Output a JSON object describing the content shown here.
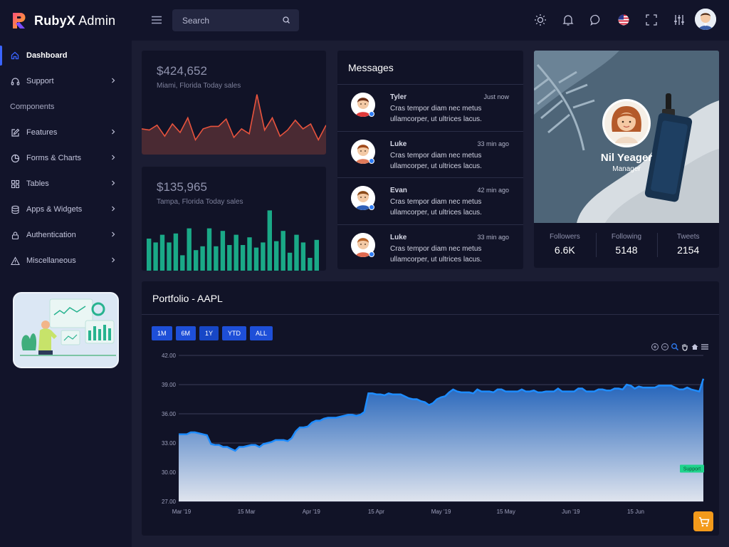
{
  "brand": {
    "name_bold": "RubyX",
    "name_rest": " Admin",
    "logo_icon": "r-logo-icon"
  },
  "header": {
    "search_placeholder": "Search",
    "icons": [
      "menu-icon",
      "search-icon",
      "sun-icon",
      "bell-icon",
      "chat-icon",
      "us-flag-icon",
      "fullscreen-icon",
      "sliders-icon",
      "avatar"
    ]
  },
  "sidebar": {
    "items": [
      {
        "label": "Dashboard",
        "icon": "home-icon"
      },
      {
        "label": "Support",
        "icon": "headphones-icon"
      },
      {
        "section": "Components"
      },
      {
        "label": "Features",
        "icon": "edit-icon"
      },
      {
        "label": "Forms & Charts",
        "icon": "pie-chart-icon"
      },
      {
        "label": "Tables",
        "icon": "grid-icon"
      },
      {
        "label": "Apps & Widgets",
        "icon": "database-icon"
      },
      {
        "label": "Authentication",
        "icon": "lock-icon"
      },
      {
        "label": "Miscellaneous",
        "icon": "warning-icon"
      }
    ]
  },
  "sales": [
    {
      "value": "$424,652",
      "subtitle": "Miami, Florida Today sales",
      "color": "#e8533d",
      "series": [
        21,
        20,
        24,
        15,
        25,
        18,
        30,
        12,
        21,
        23,
        23,
        29,
        14,
        21,
        17,
        49,
        20,
        30,
        15,
        20,
        28,
        21,
        25,
        12,
        24
      ]
    },
    {
      "value": "$135,965",
      "subtitle": "Tampa, Florida Today sales",
      "color": "#1aa987",
      "series": [
        25,
        22,
        28,
        22,
        29,
        12,
        33,
        16,
        19,
        33,
        19,
        31,
        20,
        28,
        20,
        26,
        18,
        22,
        47,
        23,
        31,
        14,
        28,
        22,
        10,
        24
      ]
    }
  ],
  "messages": {
    "title": "Messages",
    "items": [
      {
        "name": "Tyler",
        "time": "Just now",
        "text": "Cras tempor diam nec metus ullamcorper, ut ultrices lacus.",
        "hair": "#6b2e16",
        "shirt": "#e03a3a"
      },
      {
        "name": "Luke",
        "time": "33 min ago",
        "text": "Cras tempor diam nec metus ullamcorper, ut ultrices lacus.",
        "hair": "#a04a1c",
        "shirt": "#e07a5a"
      },
      {
        "name": "Evan",
        "time": "42 min ago",
        "text": "Cras tempor diam nec metus ullamcorper, ut ultrices lacus.",
        "hair": "#8a4a1a",
        "shirt": "#2f5fb7"
      },
      {
        "name": "Luke",
        "time": "33 min ago",
        "text": "Cras tempor diam nec metus ullamcorper, ut ultrices lacus.",
        "hair": "#b8652a",
        "shirt": "#e06a50"
      }
    ]
  },
  "profile": {
    "name": "Nil Yeager",
    "role": "Manager",
    "stats": [
      {
        "label": "Followers",
        "value": "6.6K"
      },
      {
        "label": "Following",
        "value": "5148"
      },
      {
        "label": "Tweets",
        "value": "2154"
      }
    ]
  },
  "portfolio": {
    "title": "Portfolio - AAPL",
    "ranges": [
      "1M",
      "6M",
      "1Y",
      "YTD",
      "ALL"
    ],
    "toolbar_icons": [
      "zoom-in-icon",
      "zoom-out-icon",
      "magnifier-icon",
      "pan-hand-icon",
      "home-icon",
      "menu-icon"
    ],
    "annotation": "Support",
    "fab_icon": "cart-icon"
  },
  "chart_data": {
    "type": "area",
    "title": "Portfolio - AAPL",
    "x_tick_labels": [
      "Mar '19",
      "15 Mar",
      "Apr '19",
      "15 Apr",
      "May '19",
      "15 May",
      "Jun '19",
      "15 Jun"
    ],
    "y_tick_labels": [
      "42.00",
      "39.00",
      "36.00",
      "33.00",
      "30.00",
      "27.00"
    ],
    "ylim": [
      27,
      42
    ],
    "grid": true,
    "annotation": {
      "label": "Support",
      "y": 30.4
    },
    "series": [
      {
        "values": [
          33.9,
          33.9,
          33.9,
          34.1,
          34.1,
          34.0,
          33.9,
          33.8,
          32.9,
          32.8,
          32.8,
          32.6,
          32.6,
          32.4,
          32.2,
          32.6,
          32.6,
          32.7,
          32.8,
          32.8,
          32.6,
          32.9,
          33.0,
          33.1,
          33.3,
          33.3,
          33.3,
          33.2,
          33.5,
          34.2,
          34.6,
          34.6,
          34.7,
          35.1,
          35.3,
          35.3,
          35.5,
          35.6,
          35.6,
          35.6,
          35.7,
          35.8,
          35.9,
          35.9,
          35.8,
          35.9,
          36.2,
          38.1,
          38.1,
          38.0,
          38.0,
          37.9,
          38.1,
          38.0,
          38.0,
          38.0,
          37.8,
          37.6,
          37.5,
          37.5,
          37.3,
          37.2,
          36.9,
          37.1,
          37.5,
          37.7,
          37.8,
          38.2,
          38.5,
          38.3,
          38.2,
          38.2,
          38.2,
          38.1,
          38.5,
          38.3,
          38.3,
          38.3,
          38.2,
          38.5,
          38.5,
          38.3,
          38.3,
          38.3,
          38.3,
          38.5,
          38.3,
          38.3,
          38.4,
          38.2,
          38.2,
          38.3,
          38.3,
          38.3,
          38.6,
          38.3,
          38.3,
          38.3,
          38.3,
          38.6,
          38.6,
          38.3,
          38.3,
          38.3,
          38.5,
          38.5,
          38.4,
          38.4,
          38.6,
          38.6,
          38.5,
          39.0,
          38.9,
          38.6,
          38.8,
          38.7,
          38.7,
          38.7,
          38.7,
          38.9,
          38.9,
          38.9,
          38.9,
          38.7,
          38.5,
          38.5,
          38.7,
          38.5,
          38.4,
          38.3,
          39.6
        ]
      }
    ]
  }
}
